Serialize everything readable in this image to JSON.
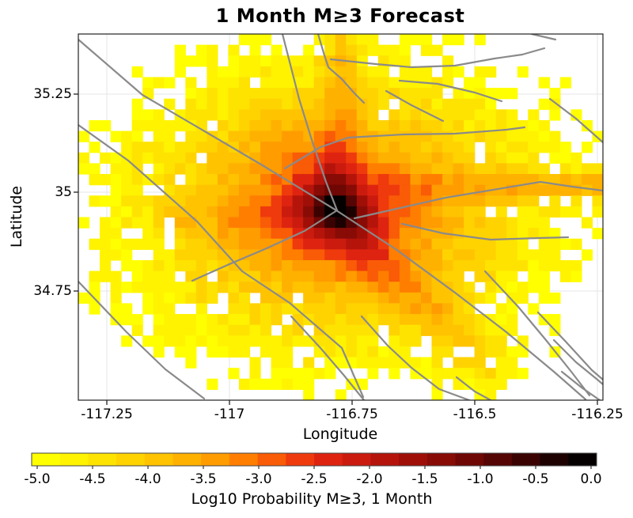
{
  "title": "1 Month M≥3 Forecast",
  "axes": {
    "x_label": "Longitude",
    "y_label": "Latitude",
    "x_ticks": [
      {
        "label": "-117.25",
        "px": 135
      },
      {
        "label": "-117",
        "px": 290
      },
      {
        "label": "-116.75",
        "px": 445
      },
      {
        "label": "-116.5",
        "px": 600
      },
      {
        "label": "-116.25",
        "px": 755
      }
    ],
    "y_ticks": [
      {
        "label": "35.25",
        "px": 119
      },
      {
        "label": "35",
        "px": 243
      },
      {
        "label": "34.75",
        "px": 368
      }
    ]
  },
  "colorbar": {
    "caption": "Log10 Probability M≥3, 1 Month",
    "tick_labels": [
      "-5.0",
      "-4.5",
      "-4.0",
      "-3.5",
      "-3.0",
      "-2.5",
      "-2.0",
      "-1.5",
      "-1.0",
      "-0.5",
      "0.0"
    ],
    "min": -5.0,
    "max": 0.0,
    "step_per_segment": 0.25,
    "colors": [
      "#FFFF00",
      "#FFF300",
      "#FFE300",
      "#FFD300",
      "#FFC300",
      "#FFB100",
      "#FF9C00",
      "#FF7E00",
      "#F95B07",
      "#EF3A0D",
      "#DE2410",
      "#CB1B0E",
      "#B5140B",
      "#9F0F08",
      "#880B06",
      "#6F0704",
      "#550503",
      "#3A0302",
      "#1D0101",
      "#050000"
    ],
    "border_color": "#444444"
  },
  "chart_data": {
    "type": "heatmap",
    "title": "1 Month M≥3 Forecast",
    "xlabel": "Longitude",
    "ylabel": "Latitude",
    "x_range": [
      -117.31,
      -116.24
    ],
    "y_range": [
      34.47,
      35.4
    ],
    "value_label": "Log10 Probability M≥3, 1 Month",
    "value_range": [
      -5.0,
      0.0
    ],
    "peak_value_log10": -0.1,
    "peak_lon": -116.78,
    "peak_lat": 34.95,
    "grid": {
      "ncols": 49,
      "nrows": 34
    },
    "gridline_color": "#e9e9e9",
    "background": "#ffffff",
    "heat_model": {
      "comment": "log10 level index 0..19 maps to colorbar colors (-5.0 to 0.0, 0.25 per step); L = peak - decay*ln(r_cells) + ridge boosts + noise",
      "seed": 7,
      "cx": 24.1,
      "cy": 16.4,
      "aspect": 1.455,
      "peak": 18.0,
      "decay": 5.5,
      "min_r": 0.55,
      "noise": 1.6,
      "cutoff": 0.45,
      "hole_below": 3.5,
      "hole_prob": 0.13,
      "ridges": [
        {
          "x1": 24.2,
          "y1": 13.5,
          "x2": 24.6,
          "y2": 0.0,
          "boost": 3.0,
          "width": 1.3,
          "taper": false
        },
        {
          "x1": 26.5,
          "y1": 14.3,
          "x2": 48.6,
          "y2": 14.0,
          "boost": 5.2,
          "width": 1.05,
          "taper": true
        },
        {
          "x1": 24.6,
          "y1": 17.6,
          "x2": 38.0,
          "y2": 31.0,
          "boost": 3.0,
          "width": 1.7,
          "taper": false
        },
        {
          "x1": 10.0,
          "y1": 17.0,
          "x2": 21.0,
          "y2": 16.6,
          "boost": 1.3,
          "width": 1.3,
          "taper": false
        },
        {
          "x1": 17.5,
          "y1": 9.0,
          "x2": 23.0,
          "y2": 14.0,
          "boost": 1.4,
          "width": 1.6,
          "taper": false
        }
      ]
    },
    "fault_lines": {
      "color": "#8a8a8a",
      "width": 2.2,
      "polylines": [
        [
          [
            0,
            7
          ],
          [
            81,
            77
          ],
          [
            163,
            125
          ],
          [
            231,
            165
          ],
          [
            326,
            223
          ],
          [
            401,
            272
          ],
          [
            476,
            327
          ],
          [
            541,
            377
          ],
          [
            601,
            427
          ],
          [
            641,
            462
          ]
        ],
        [
          [
            0,
            115
          ],
          [
            63,
            160
          ],
          [
            150,
            237
          ],
          [
            207,
            300
          ],
          [
            267,
            340
          ],
          [
            333,
            397
          ],
          [
            360,
            459
          ]
        ],
        [
          [
            0,
            313
          ],
          [
            61,
            377
          ],
          [
            110,
            424
          ],
          [
            159,
            461
          ]
        ],
        [
          [
            258,
            0
          ],
          [
            279,
            82
          ],
          [
            296,
            137
          ],
          [
            313,
            187
          ],
          [
            327,
            223
          ]
        ],
        [
          [
            303,
            0
          ],
          [
            311,
            27
          ],
          [
            316,
            42
          ],
          [
            333,
            57
          ],
          [
            349,
            75
          ],
          [
            361,
            87
          ]
        ],
        [
          [
            327,
            223
          ],
          [
            286,
            249
          ],
          [
            238,
            271
          ],
          [
            191,
            291
          ],
          [
            144,
            312
          ]
        ],
        [
          [
            319,
            32
          ],
          [
            376,
            38
          ],
          [
            421,
            42
          ],
          [
            476,
            40
          ],
          [
            526,
            31
          ],
          [
            561,
            26
          ],
          [
            589,
            18
          ]
        ],
        [
          [
            573,
            0
          ],
          [
            603,
            7
          ]
        ],
        [
          [
            596,
            82
          ],
          [
            629,
            107
          ],
          [
            663,
            137
          ]
        ],
        [
          [
            406,
            59
          ],
          [
            454,
            63
          ],
          [
            501,
            74
          ],
          [
            535,
            85
          ]
        ],
        [
          [
            389,
            72
          ],
          [
            421,
            90
          ],
          [
            461,
            110
          ]
        ],
        [
          [
            261,
            170
          ],
          [
            306,
            143
          ],
          [
            341,
            131
          ],
          [
            411,
            127
          ],
          [
            476,
            126
          ],
          [
            541,
            121
          ],
          [
            564,
            118
          ]
        ],
        [
          [
            349,
            233
          ],
          [
            464,
            207
          ],
          [
            584,
            187
          ],
          [
            624,
            193
          ],
          [
            663,
            198
          ]
        ],
        [
          [
            409,
            240
          ],
          [
            461,
            252
          ],
          [
            521,
            260
          ],
          [
            581,
            258
          ],
          [
            619,
            257
          ]
        ],
        [
          [
            514,
            300
          ],
          [
            556,
            345
          ],
          [
            591,
            387
          ],
          [
            623,
            427
          ],
          [
            646,
            457
          ]
        ],
        [
          [
            581,
            352
          ],
          [
            616,
            389
          ],
          [
            649,
            425
          ],
          [
            663,
            437
          ]
        ],
        [
          [
            269,
            357
          ],
          [
            306,
            397
          ],
          [
            336,
            432
          ],
          [
            361,
            463
          ]
        ],
        [
          [
            358,
            357
          ],
          [
            391,
            394
          ],
          [
            421,
            422
          ],
          [
            456,
            449
          ],
          [
            494,
            463
          ]
        ],
        [
          [
            478,
            434
          ],
          [
            501,
            452
          ],
          [
            521,
            463
          ]
        ],
        [
          [
            601,
            387
          ],
          [
            629,
            415
          ],
          [
            656,
            437
          ],
          [
            663,
            443
          ]
        ],
        [
          [
            611,
            427
          ],
          [
            636,
            447
          ],
          [
            659,
            463
          ]
        ]
      ]
    }
  }
}
